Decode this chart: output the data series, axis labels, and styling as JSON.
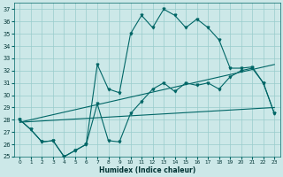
{
  "xlabel": "Humidex (Indice chaleur)",
  "bg_color": "#cce8e8",
  "grid_color": "#99cccc",
  "line_color": "#006666",
  "x_ticks": [
    0,
    1,
    2,
    3,
    4,
    5,
    6,
    7,
    8,
    9,
    10,
    11,
    12,
    13,
    14,
    15,
    16,
    17,
    18,
    19,
    20,
    21,
    22,
    23
  ],
  "y_ticks": [
    25,
    26,
    27,
    28,
    29,
    30,
    31,
    32,
    33,
    34,
    35,
    36,
    37
  ],
  "xlim": [
    -0.5,
    23.5
  ],
  "ylim": [
    25,
    37.5
  ],
  "trend1_x": [
    0,
    23
  ],
  "trend1_y": [
    27.8,
    29.0
  ],
  "trend2_x": [
    0,
    23
  ],
  "trend2_y": [
    27.8,
    32.5
  ],
  "jagged_x": [
    0,
    1,
    2,
    3,
    4,
    5,
    6,
    7,
    8,
    9,
    10,
    11,
    12,
    13,
    14,
    15,
    16,
    17,
    18,
    19,
    20,
    21,
    22,
    23
  ],
  "jagged_y": [
    28.0,
    27.2,
    26.2,
    26.3,
    25.0,
    25.5,
    26.0,
    32.5,
    30.5,
    30.2,
    35.0,
    36.5,
    35.5,
    37.0,
    36.5,
    35.5,
    36.2,
    35.5,
    34.5,
    32.2,
    32.2,
    32.3,
    31.0,
    28.5
  ],
  "smooth_x": [
    0,
    1,
    2,
    3,
    4,
    5,
    6,
    7,
    8,
    9,
    10,
    11,
    12,
    13,
    14,
    15,
    16,
    17,
    18,
    19,
    20,
    21,
    22,
    23
  ],
  "smooth_y": [
    28.0,
    27.2,
    26.2,
    26.3,
    25.0,
    25.5,
    26.0,
    29.3,
    26.3,
    26.2,
    28.5,
    29.5,
    30.5,
    31.0,
    30.3,
    31.0,
    30.8,
    31.0,
    30.5,
    31.5,
    32.0,
    32.2,
    31.0,
    28.5
  ]
}
